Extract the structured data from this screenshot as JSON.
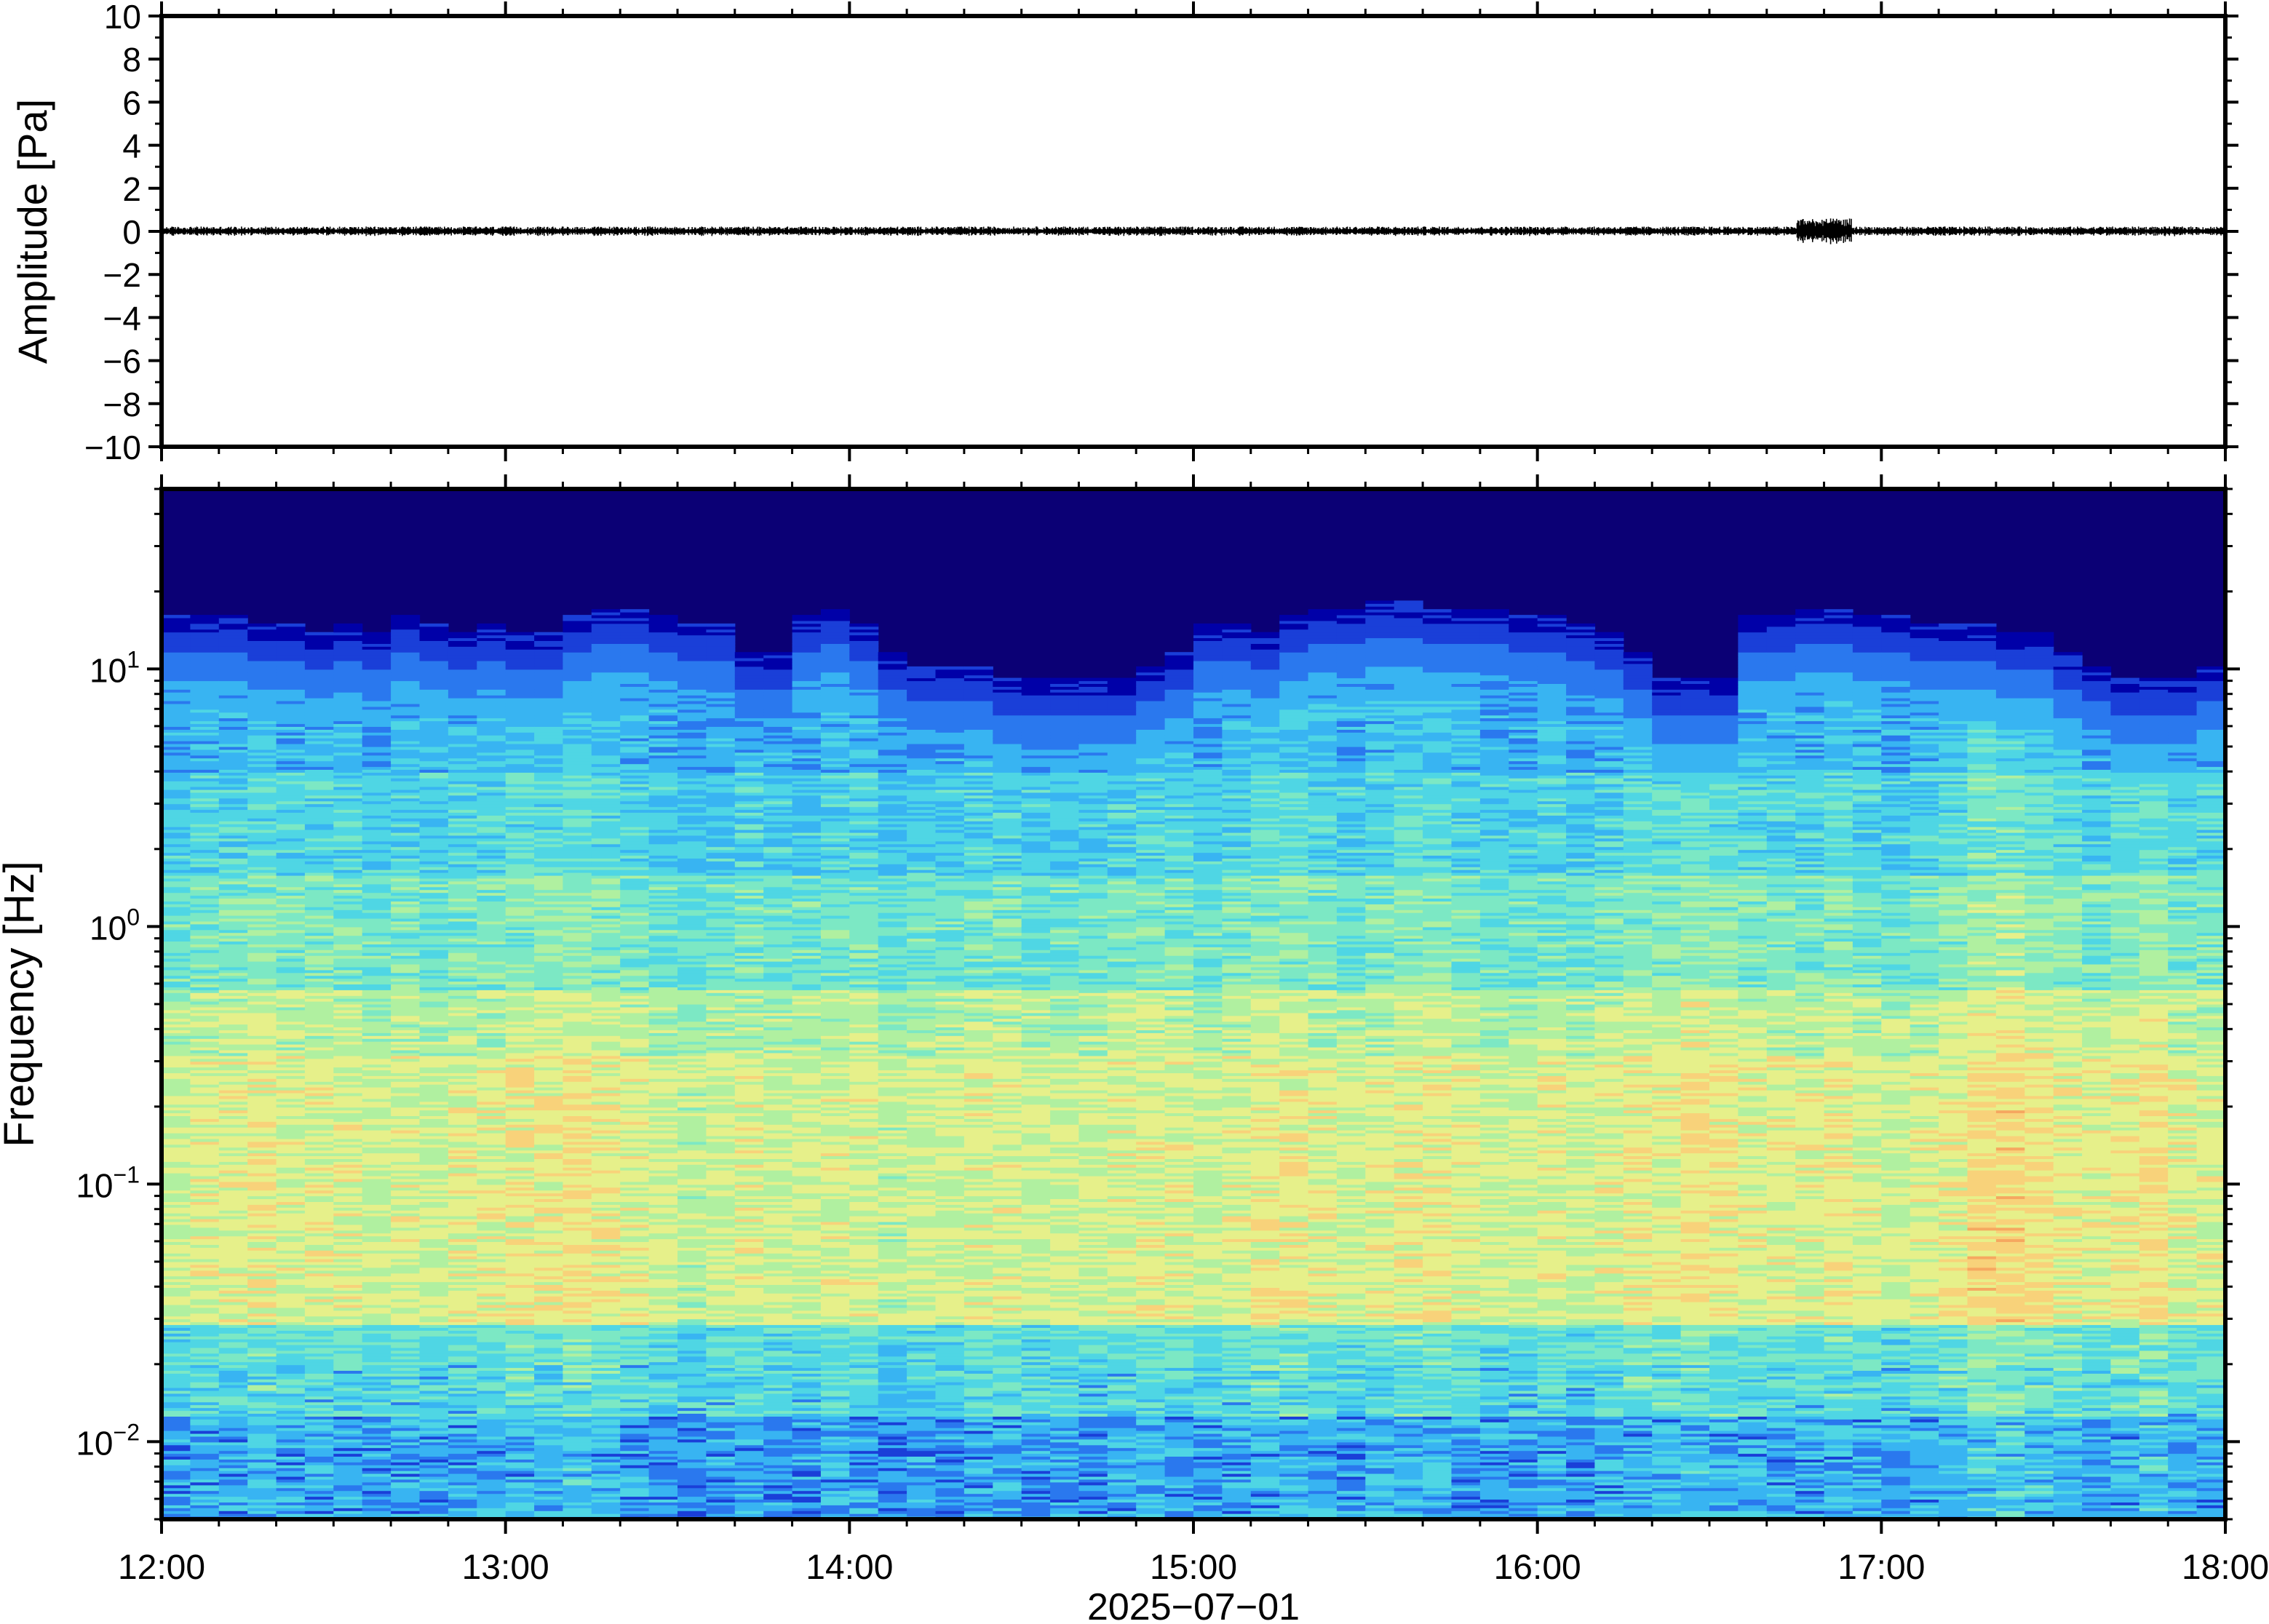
{
  "chart_data": [
    {
      "type": "line",
      "panel": "waveform",
      "ylabel": "Amplitude [Pa]",
      "ylim": [
        -10,
        10
      ],
      "yticks": [
        10,
        8,
        6,
        4,
        2,
        0,
        -2,
        -4,
        -6,
        -8,
        -10
      ],
      "ytick_labels": [
        "10",
        "8",
        "6",
        "4",
        "2",
        "0",
        "−2",
        "−4",
        "−6",
        "−8",
        "−10"
      ],
      "x_start": "12:00",
      "x_end": "18:00",
      "baseline": 0,
      "typical_amplitude_pa": 0.15,
      "max_amplitude_pa": 0.6,
      "burst_time": "16:50",
      "line_color": "#000000",
      "grid": false
    },
    {
      "type": "heatmap",
      "panel": "spectrogram",
      "ylabel": "Frequency [Hz]",
      "yscale": "log",
      "ylim": [
        0.005,
        50
      ],
      "yticks": [
        0.01,
        0.1,
        1,
        10
      ],
      "ytick_labels": [
        {
          "base": "10",
          "exp": "−2"
        },
        {
          "base": "10",
          "exp": "−1"
        },
        {
          "base": "10",
          "exp": "0"
        },
        {
          "base": "10",
          "exp": "1"
        }
      ],
      "xlabel": "2025−07−01",
      "x_range": [
        "12:00",
        "18:00"
      ],
      "xtick_labels": [
        "12:00",
        "13:00",
        "14:00",
        "15:00",
        "16:00",
        "17:00",
        "18:00"
      ],
      "colormap": "jet",
      "colors": [
        "#0b0075",
        "#0000a8",
        "#1a3fd8",
        "#2a78ee",
        "#38b4f2",
        "#4fd6e4",
        "#7ce8c4",
        "#b0f0a0",
        "#e6f08a",
        "#f8d27a",
        "#f6a860"
      ],
      "time_columns": 72,
      "time_column_minutes": 5,
      "energy_upper_cutoff_hz": [
        14,
        14,
        14,
        13,
        13,
        12,
        13,
        12,
        14,
        13,
        12,
        13,
        12,
        12,
        14,
        15,
        15,
        14,
        13,
        13,
        10,
        10,
        14,
        15,
        13,
        10,
        9,
        9,
        9,
        8,
        8,
        8,
        8,
        8,
        9,
        10,
        13,
        13,
        12,
        14,
        15,
        15,
        16,
        16,
        15,
        15,
        15,
        14,
        14,
        13,
        12,
        10,
        8,
        8,
        8,
        14,
        14,
        15,
        15,
        14,
        14,
        13,
        13,
        13,
        12,
        12,
        10,
        9,
        8,
        8,
        8,
        9
      ],
      "energy_level": [
        0.5,
        0.55,
        0.55,
        0.6,
        0.55,
        0.55,
        0.55,
        0.5,
        0.55,
        0.5,
        0.55,
        0.55,
        0.6,
        0.6,
        0.65,
        0.6,
        0.55,
        0.5,
        0.45,
        0.5,
        0.55,
        0.5,
        0.5,
        0.55,
        0.55,
        0.45,
        0.5,
        0.5,
        0.55,
        0.55,
        0.5,
        0.5,
        0.5,
        0.55,
        0.55,
        0.55,
        0.5,
        0.55,
        0.6,
        0.6,
        0.55,
        0.5,
        0.55,
        0.6,
        0.6,
        0.55,
        0.5,
        0.5,
        0.55,
        0.5,
        0.55,
        0.6,
        0.6,
        0.65,
        0.6,
        0.55,
        0.55,
        0.55,
        0.6,
        0.55,
        0.5,
        0.55,
        0.6,
        0.7,
        0.7,
        0.65,
        0.6,
        0.55,
        0.6,
        0.65,
        0.55,
        0.55
      ]
    }
  ]
}
